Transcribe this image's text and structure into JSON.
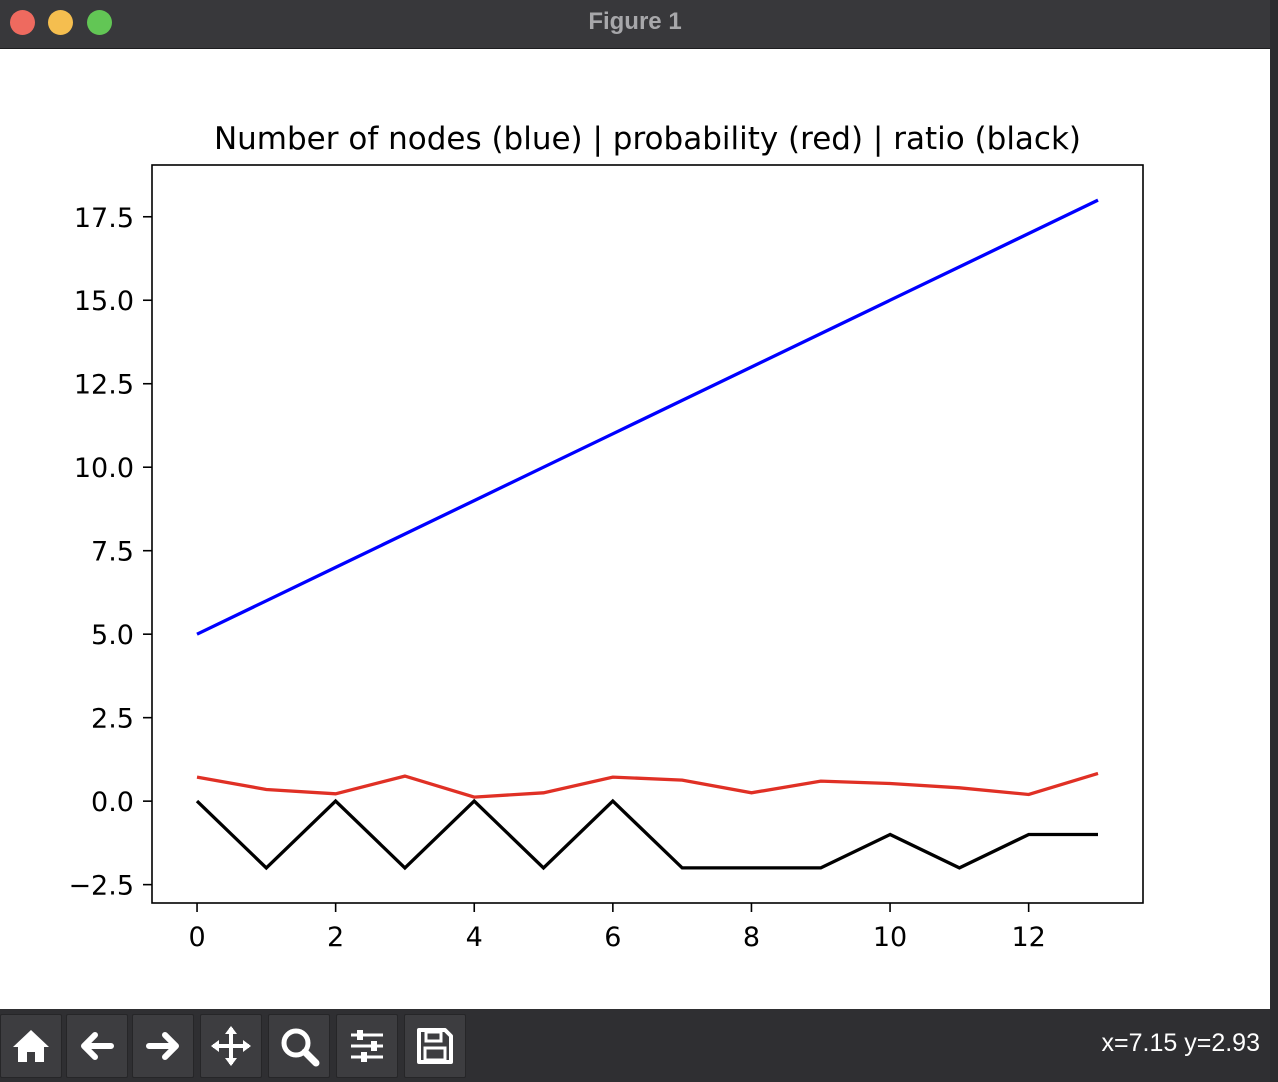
{
  "window": {
    "title": "Figure 1",
    "traffic_lights": [
      {
        "name": "close",
        "color": "#ee6a5f"
      },
      {
        "name": "minimize",
        "color": "#f5be4f"
      },
      {
        "name": "maximize",
        "color": "#62c655"
      }
    ]
  },
  "toolbar": {
    "buttons": [
      {
        "name": "home",
        "icon": "home-icon"
      },
      {
        "name": "back",
        "icon": "arrow-left-icon"
      },
      {
        "name": "forward",
        "icon": "arrow-right-icon"
      },
      {
        "name": "pan",
        "icon": "move-icon"
      },
      {
        "name": "zoom",
        "icon": "magnifier-icon"
      },
      {
        "name": "configure-subplots",
        "icon": "sliders-icon"
      },
      {
        "name": "save",
        "icon": "floppy-disk-icon"
      }
    ],
    "coordinates": "x=7.15 y=2.93"
  },
  "chart_data": {
    "type": "line",
    "title": "Number of nodes (blue) | probability (red) | ratio (black)",
    "xlabel": "",
    "ylabel": "",
    "xlim": [
      -0.65,
      13.65
    ],
    "ylim": [
      -3.05,
      19.05
    ],
    "xticks": [
      0,
      2,
      4,
      6,
      8,
      10,
      12
    ],
    "xtick_labels": [
      "0",
      "2",
      "4",
      "6",
      "8",
      "10",
      "12"
    ],
    "yticks": [
      -2.5,
      0.0,
      2.5,
      5.0,
      7.5,
      10.0,
      12.5,
      15.0,
      17.5
    ],
    "ytick_labels": [
      "−2.5",
      "0.0",
      "2.5",
      "5.0",
      "7.5",
      "10.0",
      "12.5",
      "15.0",
      "17.5"
    ],
    "grid": false,
    "x": [
      0,
      1,
      2,
      3,
      4,
      5,
      6,
      7,
      8,
      9,
      10,
      11,
      12,
      13
    ],
    "series": [
      {
        "name": "Number of nodes",
        "color": "#0000ff",
        "values": [
          5,
          6,
          7,
          8,
          9,
          10,
          11,
          12,
          13,
          14,
          15,
          16,
          17,
          18
        ]
      },
      {
        "name": "probability",
        "color": "#e03025",
        "values": [
          0.72,
          0.35,
          0.22,
          0.75,
          0.12,
          0.25,
          0.72,
          0.63,
          0.25,
          0.6,
          0.53,
          0.4,
          0.2,
          0.83
        ]
      },
      {
        "name": "ratio",
        "color": "#000000",
        "values": [
          0,
          -2,
          0,
          -2,
          0,
          -2,
          0,
          -2,
          -2,
          -2,
          -1,
          -2,
          -1,
          -1
        ]
      }
    ]
  }
}
